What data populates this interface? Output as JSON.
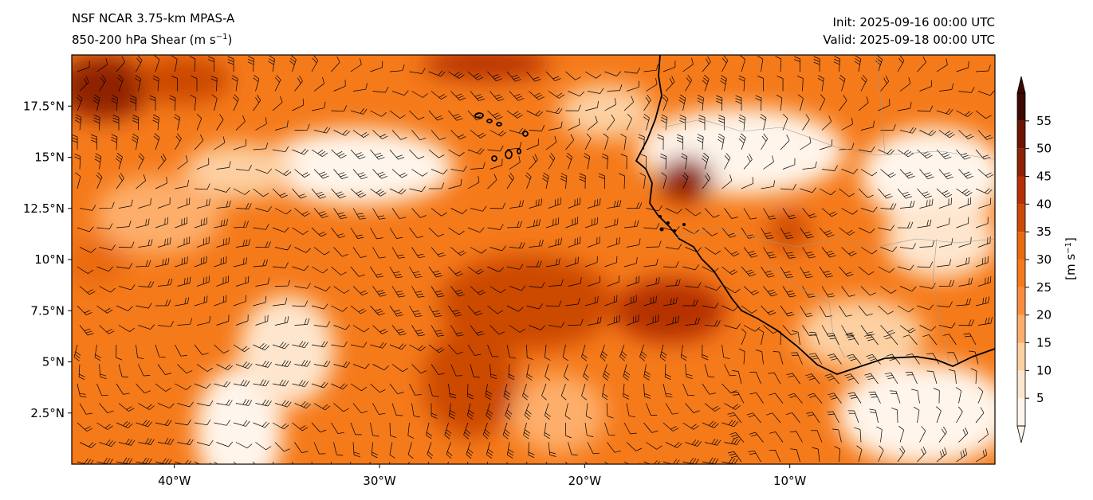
{
  "titles": {
    "left_line1": "NSF NCAR 3.75-km MPAS-A",
    "left_line2_main": "850-200 hPa Shear (m s",
    "left_line2_sup": "−1",
    "left_line2_end": ")",
    "init": "Init: 2025-09-16 00:00 UTC",
    "valid": "Valid: 2025-09-18 00:00 UTC"
  },
  "map": {
    "region": "Tropical eastern Atlantic and West Africa",
    "lon_range": [
      -45,
      0
    ],
    "lat_range": [
      0,
      20
    ],
    "lon_ticks": [
      {
        "value": -40,
        "label": "40°W"
      },
      {
        "value": -30,
        "label": "30°W"
      },
      {
        "value": -20,
        "label": "20°W"
      },
      {
        "value": -10,
        "label": "10°W"
      }
    ],
    "lat_ticks": [
      {
        "value": 17.5,
        "label": "17.5°N"
      },
      {
        "value": 15,
        "label": "15°N"
      },
      {
        "value": 12.5,
        "label": "12.5°N"
      },
      {
        "value": 10,
        "label": "10°N"
      },
      {
        "value": 7.5,
        "label": "7.5°N"
      },
      {
        "value": 5,
        "label": "5°N"
      },
      {
        "value": 2.5,
        "label": "2.5°N"
      }
    ],
    "fill_variable": "850-200 hPa vertical wind shear magnitude",
    "overlay": "shear wind barbs"
  },
  "colorbar": {
    "unit_main": "[m s",
    "unit_sup": "−1",
    "unit_end": "]",
    "levels": [
      0,
      5,
      10,
      15,
      20,
      25,
      30,
      35,
      40,
      45,
      50,
      55,
      60
    ],
    "tick_labels": [
      "5",
      "10",
      "15",
      "20",
      "25",
      "30",
      "35",
      "40",
      "45",
      "50",
      "55"
    ],
    "colors": [
      "#fff5eb",
      "#fee6ce",
      "#fdd0a2",
      "#fdae6b",
      "#fd8d3c",
      "#f57a1a",
      "#ea6a10",
      "#cc4a06",
      "#b53006",
      "#8f2104",
      "#6e1402",
      "#3d0901"
    ],
    "extend": "both"
  }
}
